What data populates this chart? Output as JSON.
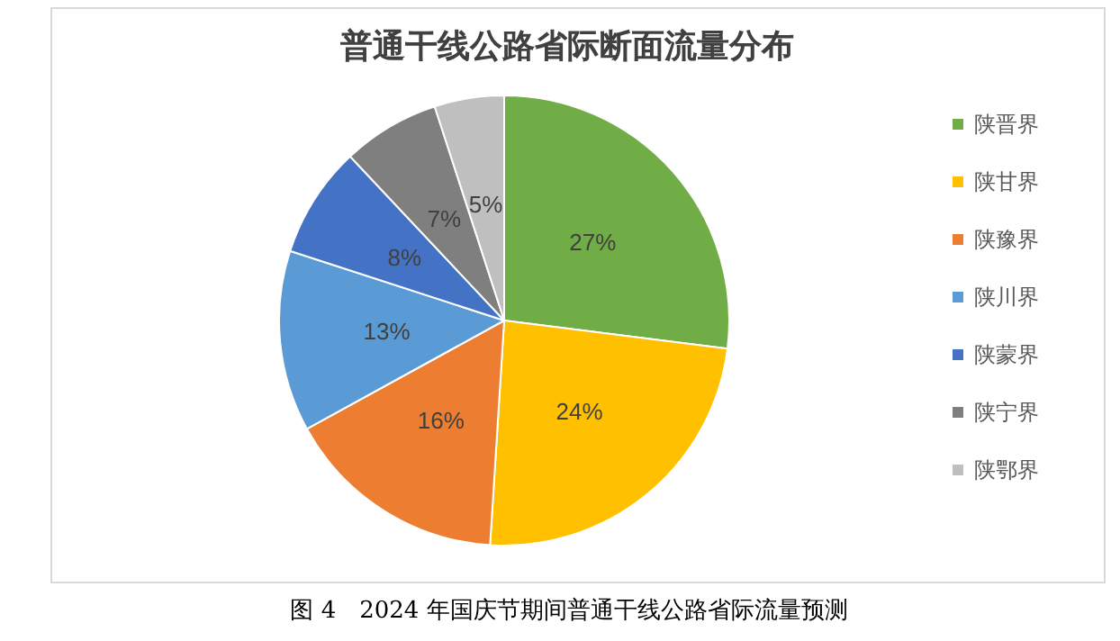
{
  "chart_data": {
    "type": "pie",
    "title": "普通干线公路省际断面流量分布",
    "categories": [
      "陕晋界",
      "陕甘界",
      "陕豫界",
      "陕川界",
      "陕蒙界",
      "陕宁界",
      "陕鄂界"
    ],
    "values": [
      27,
      24,
      16,
      13,
      8,
      7,
      5
    ],
    "value_labels": [
      "27%",
      "24%",
      "16%",
      "13%",
      "8%",
      "7%",
      "5%"
    ],
    "colors": [
      "#70ad47",
      "#ffc000",
      "#ed7d31",
      "#5b9bd5",
      "#4472c4",
      "#7f7f7f",
      "#bfbfbf"
    ],
    "legend": "right",
    "annotations": [
      "图 4　2024 年国庆节期间普通干线公路省际流量预测"
    ]
  }
}
